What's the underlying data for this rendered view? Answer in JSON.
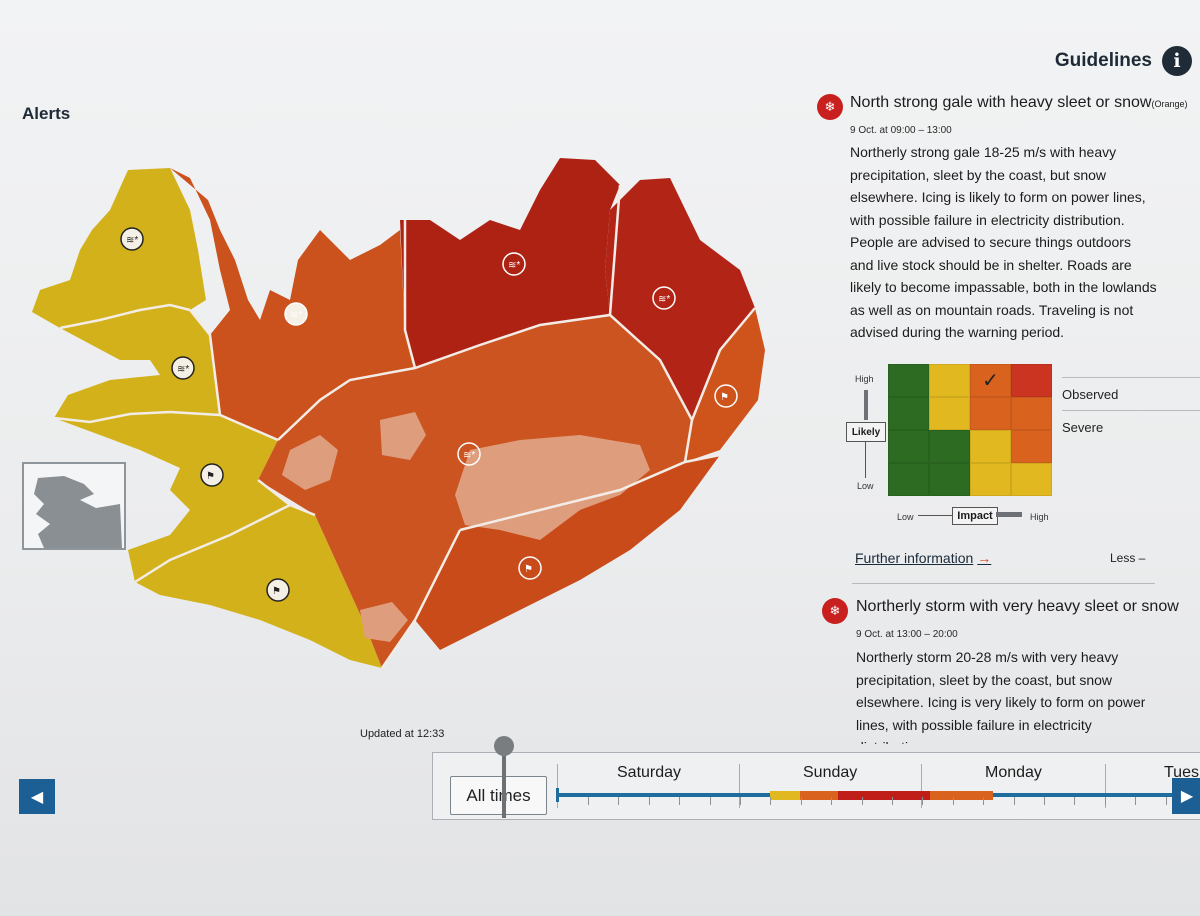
{
  "header": {
    "guidelines_label": "Guidelines",
    "info_icon_glyph": "i",
    "alerts_title": "Alerts"
  },
  "map": {
    "region_colors": {
      "yellow": "#d3b11a",
      "orange": "#d1561c",
      "dark_orange": "#c74a18",
      "red": "#b52415",
      "glacier": "#de9e7e"
    },
    "warning_icons": [
      "wind-snow-icon",
      "windsock-icon"
    ]
  },
  "alerts": [
    {
      "title": "North strong gale with heavy sleet or snow",
      "title_suffix": "(Orange)",
      "time": "9 Oct. at 09:00 – 13:00",
      "lines": [
        "Northerly strong gale 18-25 m/s with heavy",
        "precipitation, sleet by the coast, but snow",
        "elsewhere. Icing is likely to form on power lines,",
        "with possible failure in electricity distribution.",
        "People are advised to secure things outdoors",
        "and live stock should be in shelter. Roads are",
        "likely to become impassable, both in the lowlands",
        "as well as on mountain roads. Traveling is not",
        "advised during the warning period."
      ]
    },
    {
      "title": "Northerly storm with very heavy sleet or snow",
      "time": "9 Oct. at 13:00 – 20:00",
      "lines": [
        "Northerly storm 20-28 m/s with very heavy",
        "precipitation, sleet by the coast, but snow",
        "elsewhere. Icing is very likely to form on power",
        "lines, with possible failure in electricity",
        "distribution."
      ]
    }
  ],
  "matrix": {
    "rows": [
      [
        "#2c6b21",
        "#e1b81f",
        "#d9621f",
        "#cc3422"
      ],
      [
        "#2c6b21",
        "#e1b81f",
        "#d9621f",
        "#d9621f"
      ],
      [
        "#2c6b21",
        "#2c6b21",
        "#e1b81f",
        "#d9621f"
      ],
      [
        "#2c6b21",
        "#2c6b21",
        "#e1b81f",
        "#e1b81f"
      ]
    ],
    "checkmark": "✓",
    "y_high": "High",
    "y_low": "Low",
    "y_label": "Likely",
    "x_low": "Low",
    "x_high": "High",
    "x_label": "Impact",
    "legend_observed": "Observed",
    "legend_severe": "Severe"
  },
  "links": {
    "further_information": "Further information",
    "further_arrow": "→",
    "less": "Less –"
  },
  "timeline": {
    "updated": "Updated at 12:33",
    "all_times": "All times",
    "days": [
      "Saturday",
      "Sunday",
      "Monday",
      "Tues"
    ],
    "prev_glyph": "◀",
    "next_glyph": "▶"
  }
}
